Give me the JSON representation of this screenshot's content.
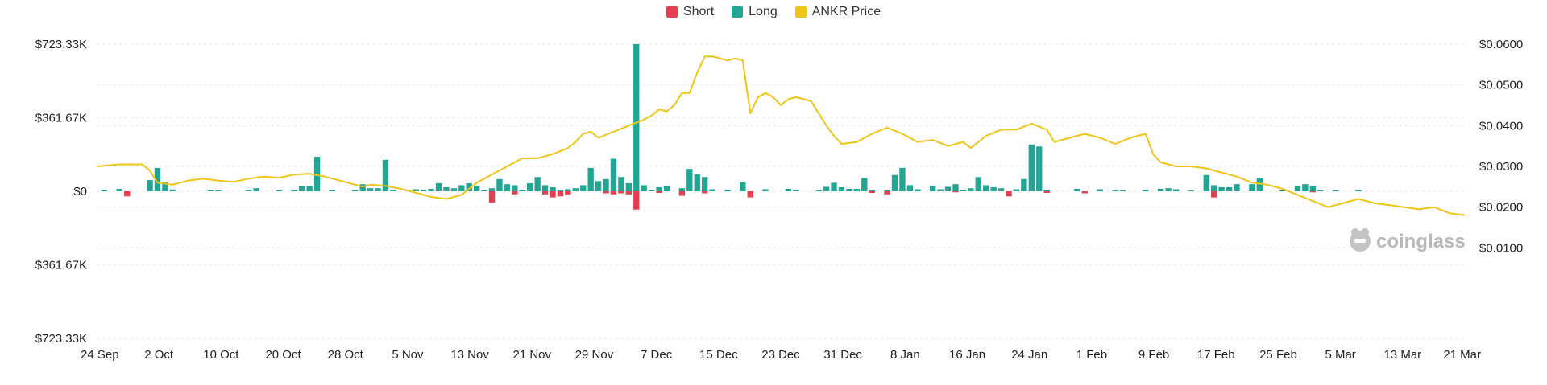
{
  "chart_data": {
    "type": "bar",
    "legend": [
      {
        "name": "Short",
        "color": "#e5404f"
      },
      {
        "name": "Long",
        "color": "#23a594"
      },
      {
        "name": "ANKR Price",
        "color": "#f0c419"
      }
    ],
    "x_tick_labels": [
      "24 Sep",
      "2 Oct",
      "10 Oct",
      "20 Oct",
      "28 Oct",
      "5 Nov",
      "13 Nov",
      "21 Nov",
      "29 Nov",
      "7 Dec",
      "15 Dec",
      "23 Dec",
      "31 Dec",
      "8 Jan",
      "16 Jan",
      "24 Jan",
      "1 Feb",
      "9 Feb",
      "17 Feb",
      "25 Feb",
      "5 Mar",
      "13 Mar",
      "21 Mar"
    ],
    "y_left_ticks": [
      "$723.33K",
      "$361.67K",
      "$0",
      "$361.67K",
      "$723.33K"
    ],
    "y_right_ticks": [
      "$0.0600",
      "$0.0500",
      "$0.0400",
      "$0.0300",
      "$0.0200",
      "$0.0100"
    ],
    "y_left_range": [
      -723330,
      723330
    ],
    "y_right_range": [
      0.0,
      0.06
    ],
    "start_date": "24 Sep",
    "end_date": "21 Mar",
    "series": [
      {
        "name": "Long",
        "color": "#23a594",
        "points": [
          [
            1,
            8000
          ],
          [
            3,
            12000
          ],
          [
            7,
            55000
          ],
          [
            8,
            115000
          ],
          [
            9,
            45000
          ],
          [
            10,
            9000
          ],
          [
            15,
            8000
          ],
          [
            16,
            6000
          ],
          [
            20,
            7000
          ],
          [
            21,
            15000
          ],
          [
            24,
            6000
          ],
          [
            26,
            6000
          ],
          [
            27,
            25000
          ],
          [
            28,
            25000
          ],
          [
            29,
            170000
          ],
          [
            31,
            6000
          ],
          [
            34,
            7000
          ],
          [
            35,
            35000
          ],
          [
            36,
            15000
          ],
          [
            37,
            15000
          ],
          [
            38,
            155000
          ],
          [
            39,
            8000
          ],
          [
            41,
            5000
          ],
          [
            42,
            10000
          ],
          [
            43,
            8000
          ],
          [
            44,
            12000
          ],
          [
            45,
            40000
          ],
          [
            46,
            20000
          ],
          [
            47,
            15000
          ],
          [
            48,
            30000
          ],
          [
            49,
            40000
          ],
          [
            50,
            25000
          ],
          [
            51,
            8000
          ],
          [
            52,
            15000
          ],
          [
            53,
            60000
          ],
          [
            54,
            35000
          ],
          [
            55,
            30000
          ],
          [
            56,
            8000
          ],
          [
            57,
            40000
          ],
          [
            58,
            70000
          ],
          [
            59,
            30000
          ],
          [
            60,
            20000
          ],
          [
            61,
            8000
          ],
          [
            62,
            10000
          ],
          [
            63,
            15000
          ],
          [
            64,
            30000
          ],
          [
            65,
            115000
          ],
          [
            66,
            50000
          ],
          [
            67,
            60000
          ],
          [
            68,
            160000
          ],
          [
            69,
            70000
          ],
          [
            70,
            40000
          ],
          [
            71,
            723330
          ],
          [
            72,
            30000
          ],
          [
            73,
            8000
          ],
          [
            74,
            20000
          ],
          [
            75,
            25000
          ],
          [
            77,
            15000
          ],
          [
            78,
            110000
          ],
          [
            79,
            85000
          ],
          [
            80,
            70000
          ],
          [
            81,
            10000
          ],
          [
            83,
            8000
          ],
          [
            85,
            45000
          ],
          [
            88,
            10000
          ],
          [
            91,
            12000
          ],
          [
            92,
            6000
          ],
          [
            95,
            6000
          ],
          [
            96,
            22000
          ],
          [
            97,
            42000
          ],
          [
            98,
            20000
          ],
          [
            99,
            12000
          ],
          [
            100,
            12000
          ],
          [
            101,
            65000
          ],
          [
            102,
            6000
          ],
          [
            104,
            6000
          ],
          [
            105,
            80000
          ],
          [
            106,
            115000
          ],
          [
            107,
            30000
          ],
          [
            108,
            10000
          ],
          [
            110,
            25000
          ],
          [
            111,
            10000
          ],
          [
            112,
            22000
          ],
          [
            113,
            35000
          ],
          [
            114,
            8000
          ],
          [
            115,
            15000
          ],
          [
            116,
            70000
          ],
          [
            117,
            30000
          ],
          [
            118,
            20000
          ],
          [
            119,
            15000
          ],
          [
            121,
            10000
          ],
          [
            122,
            60000
          ],
          [
            123,
            230000
          ],
          [
            124,
            220000
          ],
          [
            125,
            8000
          ],
          [
            129,
            12000
          ],
          [
            132,
            10000
          ],
          [
            134,
            6000
          ],
          [
            135,
            5000
          ],
          [
            138,
            8000
          ],
          [
            140,
            12000
          ],
          [
            141,
            15000
          ],
          [
            142,
            10000
          ],
          [
            144,
            5000
          ],
          [
            146,
            80000
          ],
          [
            147,
            30000
          ],
          [
            148,
            20000
          ],
          [
            149,
            20000
          ],
          [
            150,
            35000
          ],
          [
            152,
            35000
          ],
          [
            153,
            65000
          ],
          [
            156,
            5000
          ],
          [
            158,
            25000
          ],
          [
            159,
            35000
          ],
          [
            160,
            25000
          ],
          [
            161,
            5000
          ],
          [
            163,
            5000
          ],
          [
            166,
            6000
          ]
        ]
      },
      {
        "name": "Short",
        "color": "#e5404f",
        "points": [
          [
            4,
            -25000
          ],
          [
            52,
            -55000
          ],
          [
            55,
            -15000
          ],
          [
            59,
            -15000
          ],
          [
            60,
            -30000
          ],
          [
            61,
            -25000
          ],
          [
            62,
            -15000
          ],
          [
            67,
            -10000
          ],
          [
            68,
            -15000
          ],
          [
            69,
            -10000
          ],
          [
            70,
            -15000
          ],
          [
            71,
            -90000
          ],
          [
            74,
            -8000
          ],
          [
            77,
            -22000
          ],
          [
            80,
            -10000
          ],
          [
            86,
            -30000
          ],
          [
            102,
            -8000
          ],
          [
            104,
            -15000
          ],
          [
            113,
            -5000
          ],
          [
            120,
            -25000
          ],
          [
            125,
            -8000
          ],
          [
            130,
            -10000
          ],
          [
            147,
            -30000
          ],
          [
            160,
            -5000
          ]
        ]
      },
      {
        "name": "ANKR Price",
        "color": "#f0c419",
        "points": [
          [
            0,
            0.03
          ],
          [
            3,
            0.0305
          ],
          [
            6,
            0.0305
          ],
          [
            7,
            0.029
          ],
          [
            8,
            0.026
          ],
          [
            10,
            0.0255
          ],
          [
            12,
            0.0265
          ],
          [
            14,
            0.027
          ],
          [
            16,
            0.0265
          ],
          [
            18,
            0.0262
          ],
          [
            20,
            0.027
          ],
          [
            22,
            0.0275
          ],
          [
            24,
            0.0272
          ],
          [
            26,
            0.028
          ],
          [
            28,
            0.0282
          ],
          [
            30,
            0.0275
          ],
          [
            32,
            0.0265
          ],
          [
            34,
            0.0255
          ],
          [
            35,
            0.025
          ],
          [
            36,
            0.0255
          ],
          [
            38,
            0.0252
          ],
          [
            40,
            0.0245
          ],
          [
            42,
            0.0235
          ],
          [
            44,
            0.0225
          ],
          [
            46,
            0.022
          ],
          [
            48,
            0.023
          ],
          [
            50,
            0.026
          ],
          [
            52,
            0.028
          ],
          [
            54,
            0.03
          ],
          [
            56,
            0.032
          ],
          [
            58,
            0.032
          ],
          [
            60,
            0.033
          ],
          [
            62,
            0.0345
          ],
          [
            63,
            0.036
          ],
          [
            64,
            0.038
          ],
          [
            65,
            0.0385
          ],
          [
            66,
            0.037
          ],
          [
            68,
            0.0385
          ],
          [
            70,
            0.04
          ],
          [
            72,
            0.0415
          ],
          [
            73,
            0.0425
          ],
          [
            74,
            0.044
          ],
          [
            75,
            0.0435
          ],
          [
            76,
            0.045
          ],
          [
            77,
            0.048
          ],
          [
            78,
            0.048
          ],
          [
            79,
            0.053
          ],
          [
            80,
            0.057
          ],
          [
            81,
            0.057
          ],
          [
            82,
            0.0565
          ],
          [
            83,
            0.056
          ],
          [
            84,
            0.0565
          ],
          [
            85,
            0.056
          ],
          [
            86,
            0.043
          ],
          [
            87,
            0.047
          ],
          [
            88,
            0.048
          ],
          [
            89,
            0.047
          ],
          [
            90,
            0.045
          ],
          [
            91,
            0.0465
          ],
          [
            92,
            0.047
          ],
          [
            94,
            0.046
          ],
          [
            96,
            0.04
          ],
          [
            97,
            0.0375
          ],
          [
            98,
            0.0355
          ],
          [
            100,
            0.036
          ],
          [
            102,
            0.038
          ],
          [
            104,
            0.0395
          ],
          [
            106,
            0.038
          ],
          [
            108,
            0.036
          ],
          [
            110,
            0.0365
          ],
          [
            112,
            0.035
          ],
          [
            114,
            0.036
          ],
          [
            115,
            0.0345
          ],
          [
            117,
            0.0375
          ],
          [
            119,
            0.039
          ],
          [
            121,
            0.039
          ],
          [
            123,
            0.0405
          ],
          [
            125,
            0.039
          ],
          [
            126,
            0.036
          ],
          [
            128,
            0.037
          ],
          [
            130,
            0.038
          ],
          [
            132,
            0.037
          ],
          [
            134,
            0.0355
          ],
          [
            136,
            0.037
          ],
          [
            138,
            0.038
          ],
          [
            139,
            0.033
          ],
          [
            140,
            0.031
          ],
          [
            142,
            0.03
          ],
          [
            144,
            0.03
          ],
          [
            146,
            0.0295
          ],
          [
            148,
            0.0285
          ],
          [
            150,
            0.0275
          ],
          [
            152,
            0.026
          ],
          [
            154,
            0.0255
          ],
          [
            156,
            0.0245
          ],
          [
            158,
            0.023
          ],
          [
            160,
            0.0215
          ],
          [
            162,
            0.02
          ],
          [
            164,
            0.021
          ],
          [
            166,
            0.022
          ],
          [
            168,
            0.021
          ],
          [
            170,
            0.0205
          ],
          [
            172,
            0.02
          ],
          [
            174,
            0.0195
          ],
          [
            176,
            0.02
          ],
          [
            178,
            0.0185
          ],
          [
            180,
            0.018
          ]
        ]
      }
    ],
    "watermark": "coinglass"
  }
}
